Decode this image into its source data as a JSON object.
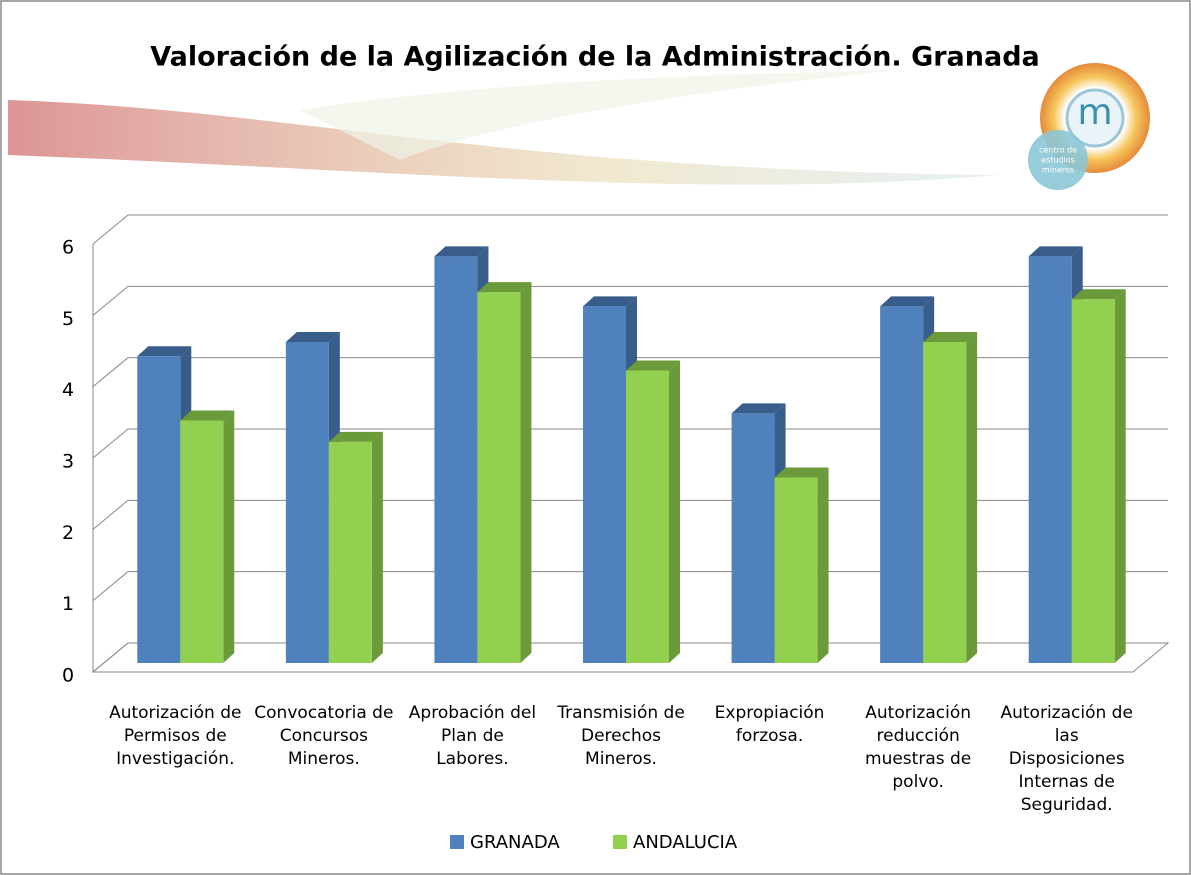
{
  "chart_data": {
    "type": "bar3d",
    "title": "Valoración de la Agilización de la Administración. Granada",
    "logo": {
      "letter": "m",
      "lines": [
        "centro de",
        "estudios",
        "mineros"
      ]
    },
    "categories": [
      "Autorización de Permisos de Investigación.",
      "Convocatoria de Concursos Mineros.",
      "Aprobación del Plan de Labores.",
      "Transmisión de Derechos Mineros.",
      "Expropiación forzosa.",
      "Autorización reducción muestras de polvo.",
      "Autorización de las Disposiciones Internas de Seguridad."
    ],
    "series": [
      {
        "name": "GRANADA",
        "color": "#4f81bd",
        "side": "#385d8a",
        "values": [
          4.3,
          4.5,
          5.7,
          5.0,
          3.5,
          5.0,
          5.7
        ]
      },
      {
        "name": "ANDALUCIA",
        "color": "#92d050",
        "side": "#6a9a3a",
        "values": [
          3.4,
          3.1,
          5.2,
          4.1,
          2.6,
          4.5,
          5.1
        ]
      }
    ],
    "ylim": [
      0,
      6
    ],
    "yticks": [
      0,
      1,
      2,
      3,
      4,
      5,
      6
    ],
    "grid": true,
    "legend": "bottom"
  }
}
